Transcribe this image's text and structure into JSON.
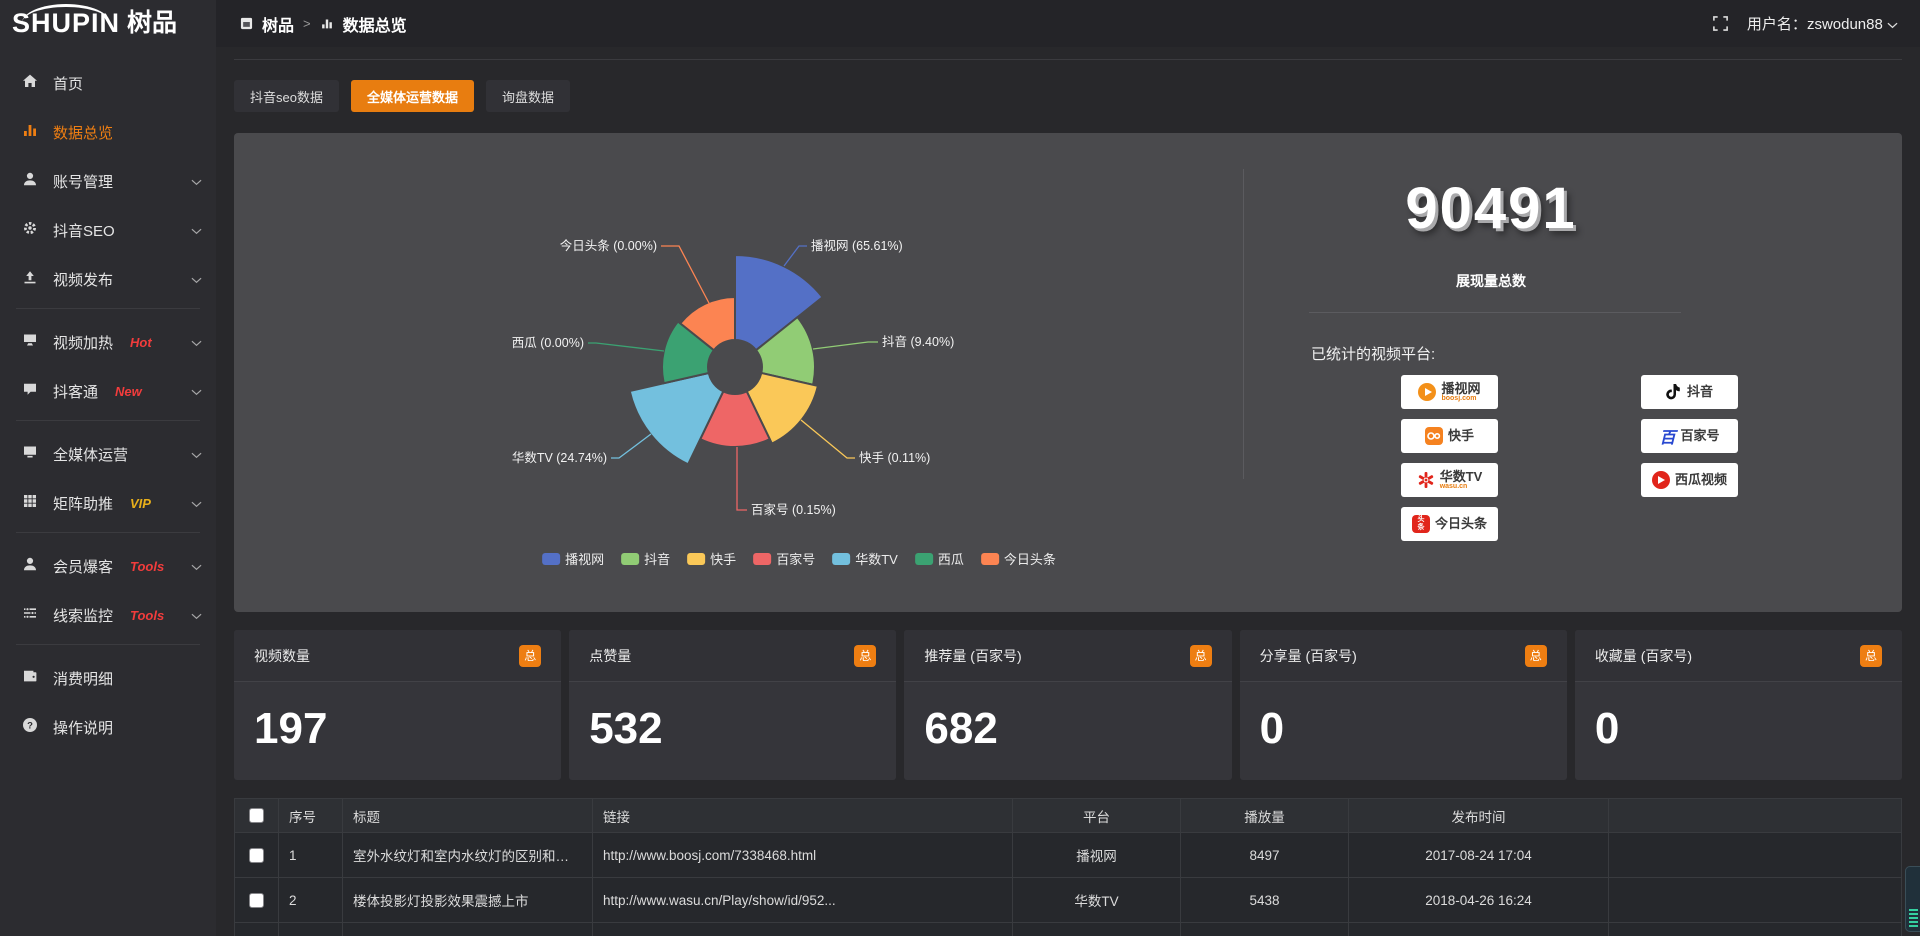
{
  "header": {
    "logo_en": "SHUPIN",
    "logo_cn": "树品",
    "breadcrumb": [
      "树品",
      "数据总览"
    ],
    "username_label": "用户名：",
    "username": "zswodun88"
  },
  "sidebar": {
    "items": [
      {
        "label": "首页",
        "icon": "home"
      },
      {
        "label": "数据总览",
        "icon": "chart",
        "active": true
      },
      {
        "label": "账号管理",
        "icon": "user",
        "chevron": true
      },
      {
        "label": "抖音SEO",
        "icon": "gear",
        "chevron": true
      },
      {
        "label": "视频发布",
        "icon": "upload",
        "chevron": true,
        "divider_after": true
      },
      {
        "label": "视频加热",
        "icon": "screen",
        "badge": "Hot",
        "badge_color": "#f23c3c",
        "chevron": true
      },
      {
        "label": "抖客通",
        "icon": "chat",
        "badge": "New",
        "badge_color": "#f23c3c",
        "chevron": true,
        "divider_after": true
      },
      {
        "label": "全媒体运营",
        "icon": "monitor",
        "chevron": true
      },
      {
        "label": "矩阵助推",
        "icon": "grid",
        "badge": "VIP",
        "badge_color": "#e9b01a",
        "chevron": true,
        "divider_after": true
      },
      {
        "label": "会员爆客",
        "icon": "user2",
        "badge": "Tools",
        "badge_color": "#f23c3c",
        "chevron": true
      },
      {
        "label": "线索监控",
        "icon": "sliders",
        "badge": "Tools",
        "badge_color": "#f23c3c",
        "chevron": true,
        "divider_after": true
      },
      {
        "label": "消费明细",
        "icon": "wallet"
      },
      {
        "label": "操作说明",
        "icon": "help"
      }
    ]
  },
  "tabs": [
    {
      "label": "抖音seo数据",
      "active": false
    },
    {
      "label": "全媒体运营数据",
      "active": true
    },
    {
      "label": "询盘数据",
      "active": false
    }
  ],
  "chart_data": {
    "type": "pie",
    "variant": "nightingale-rose-donut",
    "series": [
      {
        "name": "播视网",
        "percent": 65.61,
        "color": "#5470c6"
      },
      {
        "name": "抖音",
        "percent": 9.4,
        "color": "#91cc75"
      },
      {
        "name": "快手",
        "percent": 0.11,
        "color": "#fac858"
      },
      {
        "name": "百家号",
        "percent": 0.15,
        "color": "#ee6666"
      },
      {
        "name": "华数TV",
        "percent": 24.74,
        "color": "#73c0de"
      },
      {
        "name": "西瓜",
        "percent": 0.0,
        "color": "#3ba272"
      },
      {
        "name": "今日头条",
        "percent": 0.0,
        "color": "#fc8452"
      }
    ],
    "label_format": "name (percent%)",
    "legend": [
      "播视网",
      "抖音",
      "快手",
      "百家号",
      "华数TV",
      "西瓜",
      "今日头条"
    ],
    "legend_position": "bottom"
  },
  "summary": {
    "total_value": "90491",
    "total_label": "展现量总数",
    "platforms_title": "已统计的视频平台:",
    "platforms": [
      {
        "name": "播视网",
        "sub": "boosj.com",
        "logo": "boosj"
      },
      {
        "name": "抖音",
        "sub": "",
        "logo": "douyin"
      },
      {
        "name": "快手",
        "sub": "",
        "logo": "kuaishou"
      },
      {
        "name": "百家号",
        "sub": "",
        "logo": "baijiahao"
      },
      {
        "name": "华数TV",
        "sub": "wasu.cn",
        "logo": "wasu"
      },
      {
        "name": "西瓜视频",
        "sub": "",
        "logo": "xigua"
      },
      {
        "name": "今日头条",
        "sub": "",
        "logo": "toutiao"
      }
    ]
  },
  "stat_cards": [
    {
      "title": "视频数量",
      "badge": "总",
      "value": "197"
    },
    {
      "title": "点赞量",
      "badge": "总",
      "value": "532"
    },
    {
      "title": "推荐量 (百家号)",
      "badge": "总",
      "value": "682"
    },
    {
      "title": "分享量 (百家号)",
      "badge": "总",
      "value": "0"
    },
    {
      "title": "收藏量 (百家号)",
      "badge": "总",
      "value": "0"
    }
  ],
  "table": {
    "headers": [
      "序号",
      "标题",
      "链接",
      "平台",
      "播放量",
      "发布时间"
    ],
    "rows": [
      {
        "index": "1",
        "title": "室外水纹灯和室内水纹灯的区别和简介",
        "link": "http://www.boosj.com/7338468.html",
        "platform": "播视网",
        "views": "8497",
        "time": "2017-08-24 17:04"
      },
      {
        "index": "2",
        "title": "楼体投影灯投影效果震撼上市",
        "link": "http://www.wasu.cn/Play/show/id/952...",
        "platform": "华数TV",
        "views": "5438",
        "time": "2018-04-26 16:24"
      }
    ]
  },
  "accent_color": "#ee7e12"
}
